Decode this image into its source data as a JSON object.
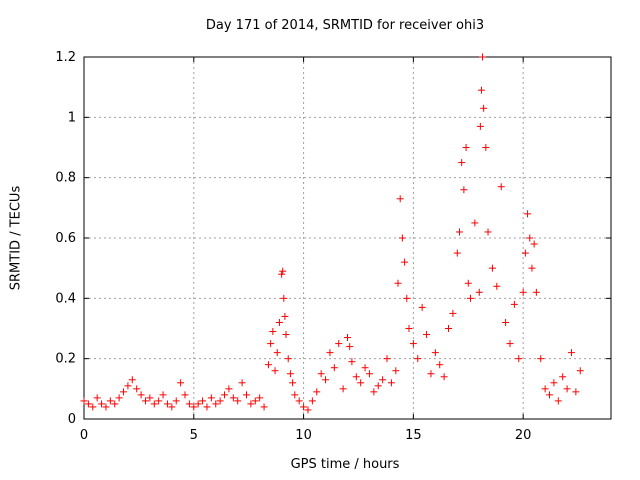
{
  "chart_data": {
    "type": "scatter",
    "title": "Day 171 of 2014, SRMTID for receiver ohi3",
    "xlabel": "GPS time / hours",
    "ylabel": "SRMTID / TECUs",
    "xlim": [
      0,
      24
    ],
    "ylim": [
      0,
      1.2
    ],
    "xticks": [
      0,
      5,
      10,
      15,
      20
    ],
    "yticks": [
      0,
      0.2,
      0.4,
      0.6,
      0.8,
      1,
      1.2
    ],
    "xtick_labels": [
      "0",
      "5",
      "10",
      "15",
      "20"
    ],
    "ytick_labels": [
      "0",
      "0.2",
      "0.4",
      "0.6",
      "0.8",
      "1",
      "1.2"
    ],
    "grid": true,
    "marker": "+",
    "series": [
      {
        "name": "SRMTID",
        "color": "#ff0000",
        "x": [
          0.0,
          0.2,
          0.4,
          0.6,
          0.8,
          1.0,
          1.2,
          1.4,
          1.6,
          1.8,
          2.0,
          2.2,
          2.4,
          2.6,
          2.8,
          3.0,
          3.2,
          3.4,
          3.6,
          3.8,
          4.0,
          4.2,
          4.4,
          4.6,
          4.8,
          5.0,
          5.2,
          5.4,
          5.6,
          5.8,
          6.0,
          6.2,
          6.4,
          6.6,
          6.8,
          7.0,
          7.2,
          7.4,
          7.6,
          7.8,
          8.0,
          8.2,
          8.4,
          8.5,
          8.6,
          8.7,
          8.8,
          8.9,
          9.0,
          9.05,
          9.1,
          9.15,
          9.2,
          9.3,
          9.4,
          9.5,
          9.6,
          9.8,
          10.0,
          10.2,
          10.4,
          10.6,
          10.8,
          11.0,
          11.2,
          11.4,
          11.6,
          11.8,
          12.0,
          12.1,
          12.2,
          12.4,
          12.6,
          12.8,
          13.0,
          13.2,
          13.4,
          13.6,
          13.8,
          14.0,
          14.2,
          14.3,
          14.4,
          14.5,
          14.6,
          14.7,
          14.8,
          15.0,
          15.2,
          15.4,
          15.6,
          15.8,
          16.0,
          16.2,
          16.4,
          16.6,
          16.8,
          17.0,
          17.1,
          17.2,
          17.3,
          17.4,
          17.5,
          17.6,
          17.8,
          18.0,
          18.05,
          18.1,
          18.15,
          18.2,
          18.3,
          18.4,
          18.6,
          18.8,
          19.0,
          19.2,
          19.4,
          19.6,
          19.8,
          20.0,
          20.1,
          20.2,
          20.3,
          20.4,
          20.5,
          20.6,
          20.8,
          21.0,
          21.2,
          21.4,
          21.6,
          21.8,
          22.0,
          22.2,
          22.4,
          22.6
        ],
        "y": [
          0.06,
          0.05,
          0.04,
          0.07,
          0.05,
          0.04,
          0.06,
          0.05,
          0.07,
          0.09,
          0.11,
          0.13,
          0.1,
          0.08,
          0.06,
          0.07,
          0.05,
          0.06,
          0.08,
          0.05,
          0.04,
          0.06,
          0.12,
          0.08,
          0.05,
          0.04,
          0.05,
          0.06,
          0.04,
          0.07,
          0.05,
          0.06,
          0.08,
          0.1,
          0.07,
          0.06,
          0.12,
          0.08,
          0.05,
          0.06,
          0.07,
          0.04,
          0.18,
          0.25,
          0.29,
          0.16,
          0.22,
          0.32,
          0.48,
          0.49,
          0.4,
          0.34,
          0.28,
          0.2,
          0.15,
          0.12,
          0.08,
          0.06,
          0.04,
          0.03,
          0.06,
          0.09,
          0.15,
          0.13,
          0.22,
          0.17,
          0.25,
          0.1,
          0.27,
          0.24,
          0.19,
          0.14,
          0.12,
          0.17,
          0.15,
          0.09,
          0.11,
          0.13,
          0.2,
          0.12,
          0.16,
          0.45,
          0.73,
          0.6,
          0.52,
          0.4,
          0.3,
          0.25,
          0.2,
          0.37,
          0.28,
          0.15,
          0.22,
          0.18,
          0.14,
          0.3,
          0.35,
          0.55,
          0.62,
          0.85,
          0.76,
          0.9,
          0.45,
          0.4,
          0.65,
          0.42,
          0.97,
          1.09,
          1.2,
          1.03,
          0.9,
          0.62,
          0.5,
          0.44,
          0.77,
          0.32,
          0.25,
          0.38,
          0.2,
          0.42,
          0.55,
          0.68,
          0.6,
          0.5,
          0.58,
          0.42,
          0.2,
          0.1,
          0.08,
          0.12,
          0.06,
          0.14,
          0.1,
          0.22,
          0.09,
          0.16
        ]
      }
    ]
  }
}
